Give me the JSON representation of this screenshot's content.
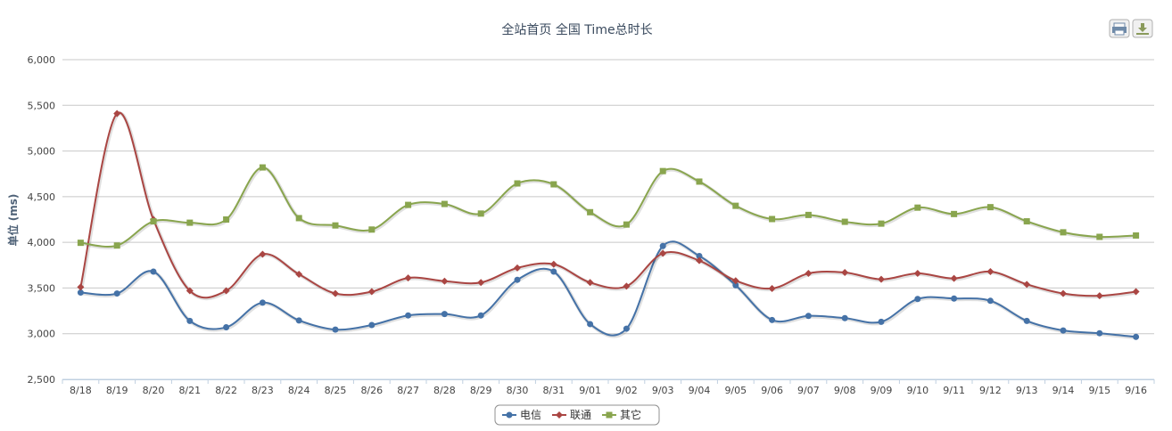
{
  "chart_data": {
    "type": "line",
    "title": "全站首页 全国 Time总时长",
    "ylabel": "单位 (ms)",
    "xlabel": "",
    "ylim": [
      2500,
      6000
    ],
    "yticks": [
      "6,000",
      "5,500",
      "5,000",
      "4,500",
      "4,000",
      "3,500",
      "3,000",
      "2,500"
    ],
    "ytick_values": [
      6000,
      5500,
      5000,
      4500,
      4000,
      3500,
      3000,
      2500
    ],
    "grid": true,
    "smooth": true,
    "legend_position": "bottom-center",
    "categories": [
      "8/18",
      "8/19",
      "8/20",
      "8/21",
      "8/22",
      "8/23",
      "8/24",
      "8/25",
      "8/26",
      "8/27",
      "8/28",
      "8/29",
      "8/30",
      "8/31",
      "9/01",
      "9/02",
      "9/03",
      "9/04",
      "9/05",
      "9/06",
      "9/07",
      "9/08",
      "9/09",
      "9/10",
      "9/11",
      "9/12",
      "9/13",
      "9/14",
      "9/15",
      "9/16"
    ],
    "series": [
      {
        "name": "电信",
        "color": "#4572a7",
        "marker": "circle",
        "values": [
          3450,
          3440,
          3680,
          3140,
          3070,
          3340,
          3145,
          3045,
          3095,
          3200,
          3215,
          3200,
          3590,
          3680,
          3105,
          3055,
          3960,
          3850,
          3530,
          3150,
          3195,
          3170,
          3130,
          3380,
          3385,
          3360,
          3140,
          3035,
          3005,
          2965
        ]
      },
      {
        "name": "联通",
        "color": "#aa4643",
        "marker": "diamond",
        "values": [
          3510,
          5410,
          4250,
          3470,
          3470,
          3870,
          3650,
          3440,
          3460,
          3610,
          3575,
          3560,
          3720,
          3760,
          3560,
          3520,
          3880,
          3800,
          3580,
          3495,
          3660,
          3670,
          3595,
          3660,
          3605,
          3680,
          3540,
          3440,
          3415,
          3460
        ]
      },
      {
        "name": "其它",
        "color": "#89a54e",
        "marker": "square",
        "values": [
          3995,
          3965,
          4230,
          4215,
          4250,
          4820,
          4265,
          4185,
          4140,
          4410,
          4420,
          4315,
          4645,
          4635,
          4330,
          4195,
          4780,
          4665,
          4400,
          4255,
          4300,
          4225,
          4205,
          4380,
          4310,
          4385,
          4230,
          4110,
          4060,
          4075
        ]
      }
    ]
  },
  "toolbar": {
    "print_icon": "printer-icon",
    "export_icon": "download-icon"
  }
}
